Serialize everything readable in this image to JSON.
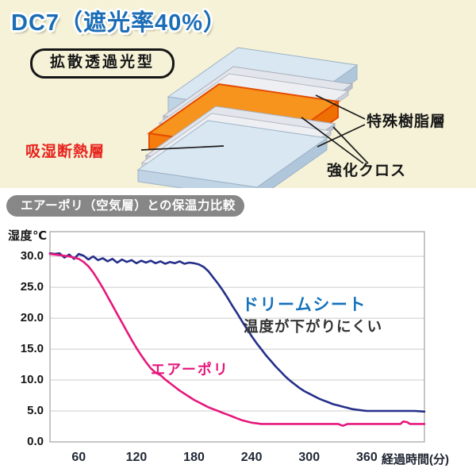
{
  "page": {
    "top_bg": "#f5f2d7",
    "bottom_bg": "#ffffff"
  },
  "header": {
    "title": "DC7（遮光率40%）",
    "title_color": "#1b6db6"
  },
  "diagram": {
    "type_label": "拡散透過光型",
    "labels": {
      "hygro_insulation": {
        "text": "吸湿断熱層",
        "color": "#e8231d"
      },
      "special_resin": {
        "text": "特殊樹脂層",
        "color": "#161616"
      },
      "reinforced_cloth": {
        "text": "強化クロス",
        "color": "#161616"
      }
    },
    "colors": {
      "blue_top": "#d9e7f2",
      "blue_front": "#c0d4e6",
      "blue_side": "#b0c7db",
      "blue_stroke": "#9cb2c6",
      "gray_top": "#e2e5eb",
      "gray_front": "#c5cad5",
      "gray_side": "#bac0cd",
      "gray_stroke": "#a7acb8",
      "gray2_top": "#edeff3",
      "gray2_front": "#d5d9e1",
      "gray2_side": "#ccd1da",
      "gray2_stroke": "#b4b8c2",
      "orange_top": "#f7941d",
      "orange_front": "#f57d0e",
      "orange_side": "#ee7005",
      "orange_stroke": "#e54b00",
      "pointer_line": "#1c1c1c"
    }
  },
  "chart_section": {
    "header": "エアーポリ（空気層）との保温力比較",
    "header_bg": "#878787",
    "header_text_color": "#ffffff"
  },
  "chart_data": {
    "type": "line",
    "title": "エアーポリ（空気層）との保温力比較",
    "ylabel": "湿度℃",
    "xlabel": "経過時間(分)",
    "xlim": [
      30,
      420
    ],
    "ylim": [
      0,
      34
    ],
    "x_ticks": [
      60,
      120,
      180,
      240,
      300,
      360
    ],
    "y_ticks": [
      0,
      5,
      10,
      15,
      20,
      25,
      30
    ],
    "y_tick_decimals": 1,
    "grid": "horizontal-only",
    "frame_color": "#a8a8a8",
    "grid_color": "#cccccc",
    "legend_position": "inline-annotations",
    "series": [
      {
        "name": "ドリームシート",
        "color": "#252f8a",
        "label_color": "#1571bb",
        "annotation": "温度が下がりにくい",
        "annotation_color": "#333333",
        "points": [
          [
            30,
            30.5
          ],
          [
            35,
            30.4
          ],
          [
            40,
            30.5
          ],
          [
            45,
            29.8
          ],
          [
            50,
            30.3
          ],
          [
            55,
            29.6
          ],
          [
            60,
            30.4
          ],
          [
            65,
            30.1
          ],
          [
            70,
            29.5
          ],
          [
            75,
            30.0
          ],
          [
            80,
            29.4
          ],
          [
            85,
            29.7
          ],
          [
            90,
            29.2
          ],
          [
            95,
            29.6
          ],
          [
            100,
            29.0
          ],
          [
            105,
            29.5
          ],
          [
            110,
            29.1
          ],
          [
            115,
            29.4
          ],
          [
            120,
            28.9
          ],
          [
            125,
            29.3
          ],
          [
            130,
            29.0
          ],
          [
            135,
            29.3
          ],
          [
            140,
            28.9
          ],
          [
            145,
            29.2
          ],
          [
            150,
            28.8
          ],
          [
            155,
            29.1
          ],
          [
            160,
            28.9
          ],
          [
            165,
            29.2
          ],
          [
            170,
            28.8
          ],
          [
            175,
            29.0
          ],
          [
            180,
            28.9
          ],
          [
            185,
            28.7
          ],
          [
            190,
            28.3
          ],
          [
            195,
            27.6
          ],
          [
            200,
            26.6
          ],
          [
            205,
            25.6
          ],
          [
            210,
            24.5
          ],
          [
            215,
            23.3
          ],
          [
            220,
            22.0
          ],
          [
            225,
            20.8
          ],
          [
            230,
            19.5
          ],
          [
            235,
            18.3
          ],
          [
            240,
            17.1
          ],
          [
            245,
            16.0
          ],
          [
            250,
            15.0
          ],
          [
            255,
            14.0
          ],
          [
            260,
            13.1
          ],
          [
            265,
            12.2
          ],
          [
            270,
            11.4
          ],
          [
            275,
            10.6
          ],
          [
            280,
            9.9
          ],
          [
            285,
            9.3
          ],
          [
            290,
            8.7
          ],
          [
            295,
            8.2
          ],
          [
            300,
            7.8
          ],
          [
            305,
            7.4
          ],
          [
            310,
            7.0
          ],
          [
            315,
            6.7
          ],
          [
            320,
            6.4
          ],
          [
            325,
            6.1
          ],
          [
            330,
            5.9
          ],
          [
            335,
            5.7
          ],
          [
            340,
            5.5
          ],
          [
            345,
            5.3
          ],
          [
            350,
            5.2
          ],
          [
            355,
            5.1
          ],
          [
            360,
            5.0
          ],
          [
            370,
            5.0
          ],
          [
            380,
            5.0
          ],
          [
            390,
            5.0
          ],
          [
            400,
            5.0
          ],
          [
            410,
            5.0
          ],
          [
            420,
            4.9
          ]
        ]
      },
      {
        "name": "エアーポリ",
        "color": "#e5187d",
        "label_color": "#e5187d",
        "annotation": "",
        "annotation_color": "#e5187d",
        "points": [
          [
            30,
            30.4
          ],
          [
            35,
            30.3
          ],
          [
            40,
            30.2
          ],
          [
            45,
            30.1
          ],
          [
            50,
            30.0
          ],
          [
            55,
            29.8
          ],
          [
            60,
            29.6
          ],
          [
            65,
            29.1
          ],
          [
            70,
            28.4
          ],
          [
            75,
            27.4
          ],
          [
            80,
            26.2
          ],
          [
            85,
            24.9
          ],
          [
            90,
            23.5
          ],
          [
            95,
            22.1
          ],
          [
            100,
            20.7
          ],
          [
            105,
            19.3
          ],
          [
            110,
            17.9
          ],
          [
            115,
            16.5
          ],
          [
            120,
            15.2
          ],
          [
            125,
            14.0
          ],
          [
            130,
            12.9
          ],
          [
            135,
            11.9
          ],
          [
            140,
            11.2
          ],
          [
            145,
            10.8
          ],
          [
            150,
            10.1
          ],
          [
            155,
            9.5
          ],
          [
            160,
            8.9
          ],
          [
            165,
            8.3
          ],
          [
            170,
            7.8
          ],
          [
            175,
            7.3
          ],
          [
            180,
            6.8
          ],
          [
            185,
            6.4
          ],
          [
            190,
            6.0
          ],
          [
            195,
            5.6
          ],
          [
            200,
            5.3
          ],
          [
            205,
            5.0
          ],
          [
            210,
            4.7
          ],
          [
            215,
            4.4
          ],
          [
            220,
            4.1
          ],
          [
            225,
            3.8
          ],
          [
            230,
            3.5
          ],
          [
            235,
            3.3
          ],
          [
            240,
            3.1
          ],
          [
            245,
            3.0
          ],
          [
            250,
            2.9
          ],
          [
            260,
            2.9
          ],
          [
            270,
            2.9
          ],
          [
            280,
            2.9
          ],
          [
            290,
            2.9
          ],
          [
            300,
            2.9
          ],
          [
            310,
            2.9
          ],
          [
            320,
            2.9
          ],
          [
            330,
            2.9
          ],
          [
            335,
            2.6
          ],
          [
            340,
            2.9
          ],
          [
            350,
            2.9
          ],
          [
            360,
            2.9
          ],
          [
            370,
            2.9
          ],
          [
            380,
            2.9
          ],
          [
            395,
            2.9
          ],
          [
            398,
            3.3
          ],
          [
            402,
            3.2
          ],
          [
            405,
            2.9
          ],
          [
            410,
            2.9
          ],
          [
            420,
            2.9
          ]
        ]
      }
    ]
  }
}
